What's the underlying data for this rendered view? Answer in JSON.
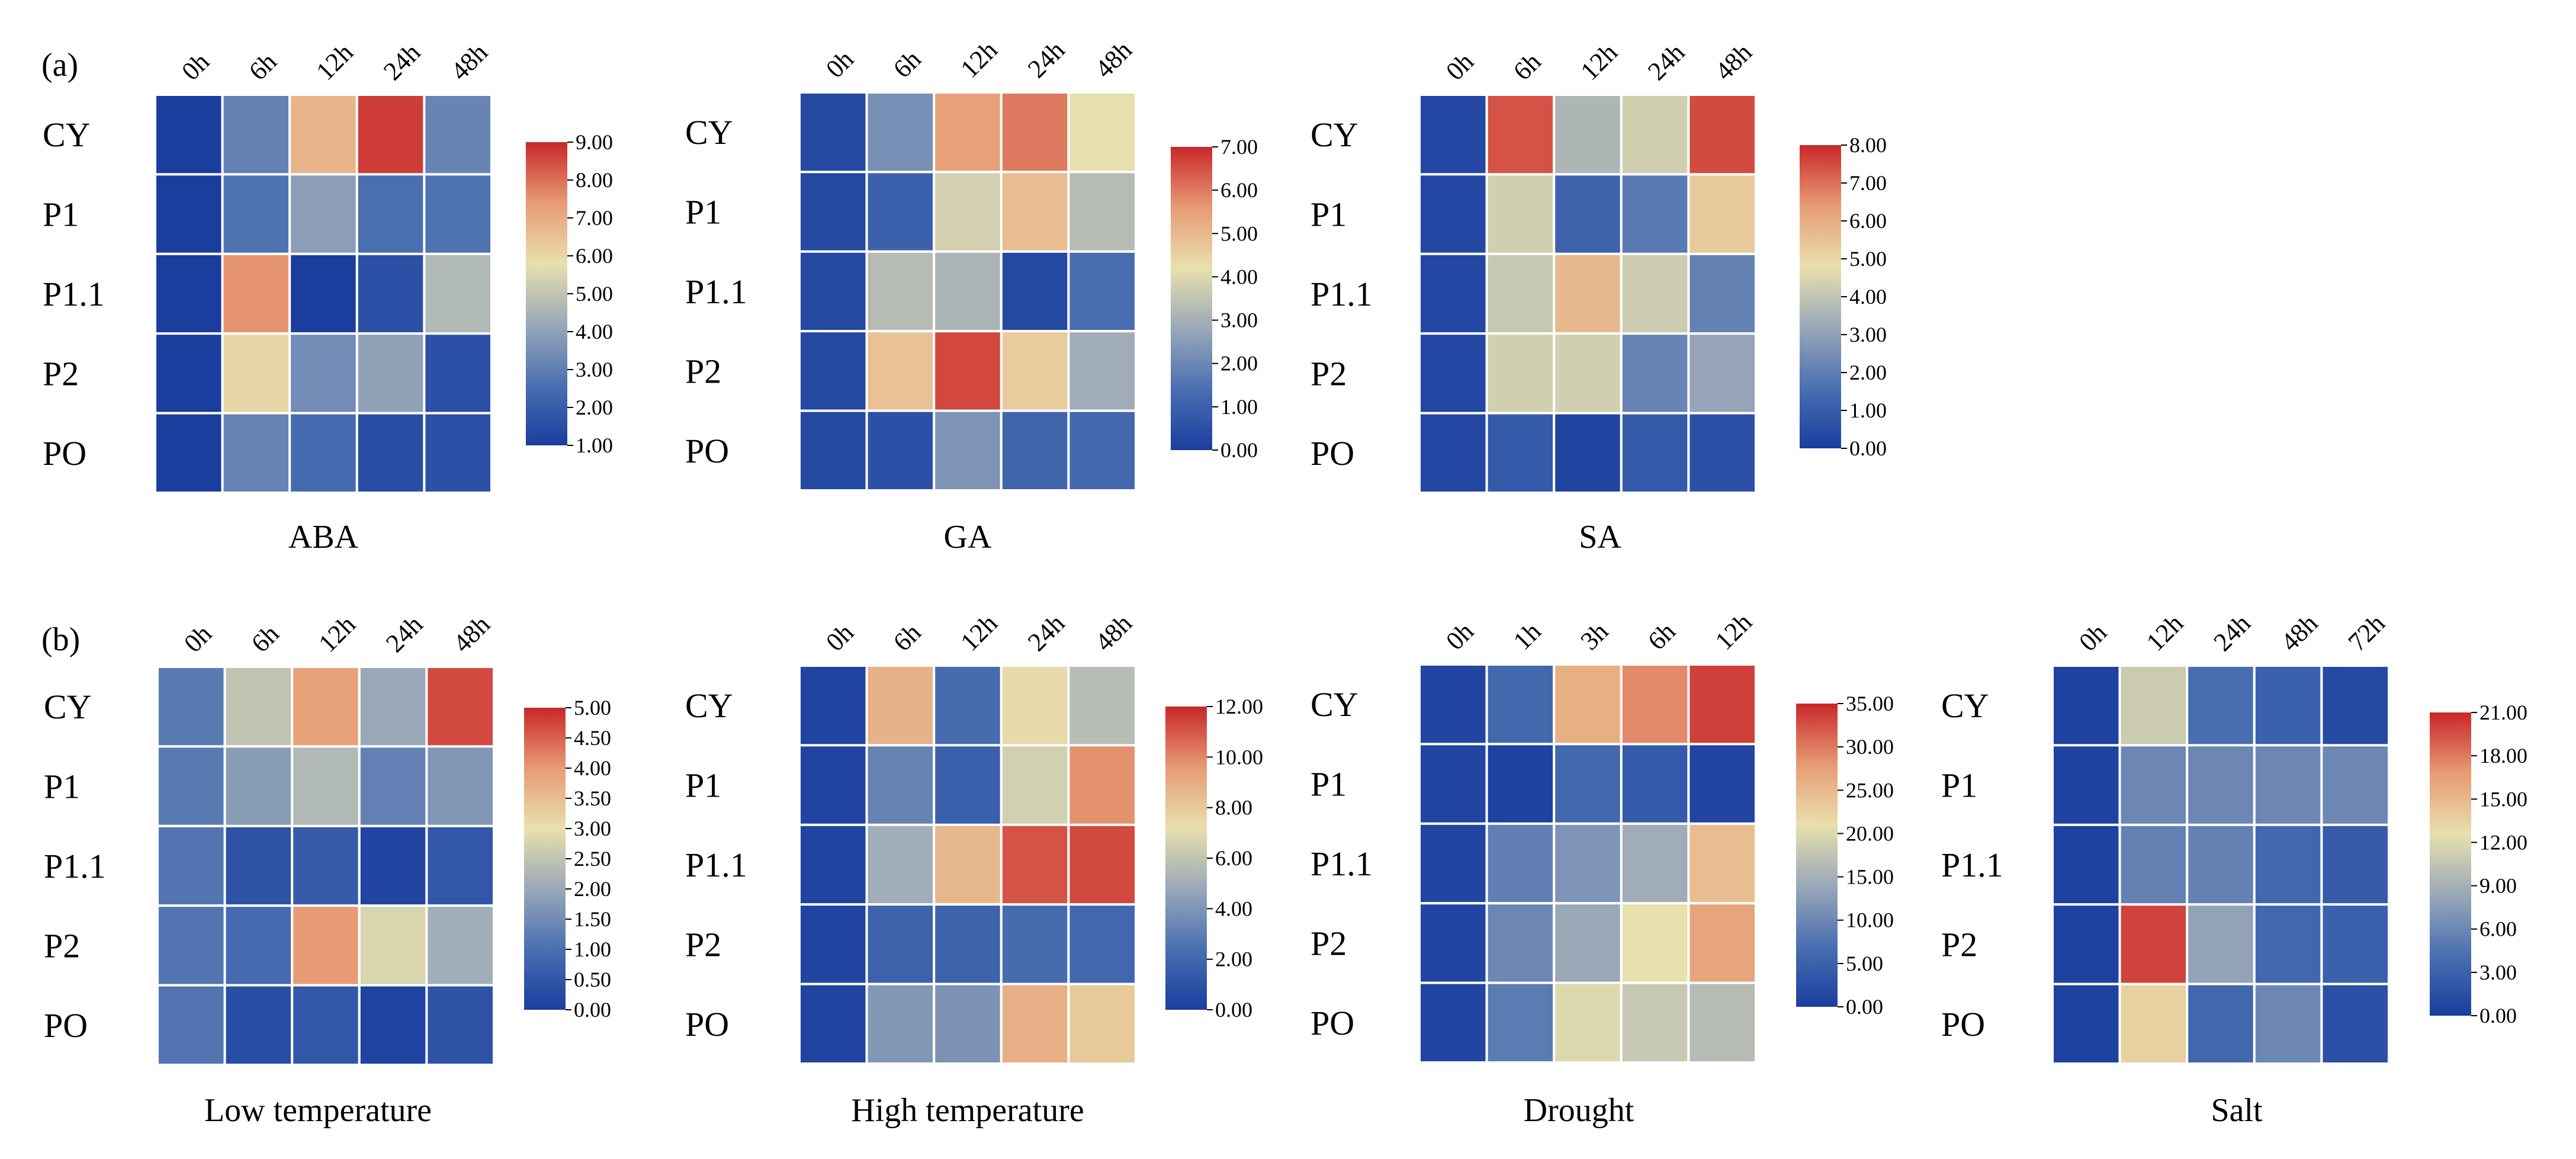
{
  "panel_labels": [
    "(a)",
    "(b)"
  ],
  "colors": {
    "scale_stops": [
      "#1a3e9e",
      "#4a6fb1",
      "#9aa8b8",
      "#e8e0ad",
      "#e79b74",
      "#c9272a"
    ],
    "grid_line": "#ffffff"
  },
  "chart_data": [
    {
      "type": "heatmap",
      "title": "ABA",
      "x": [
        "0h",
        "6h",
        "12h",
        "24h",
        "48h"
      ],
      "y": [
        "CY",
        "P1",
        "P1.1",
        "P2",
        "PO"
      ],
      "values": [
        [
          1.0,
          3.1,
          6.8,
          8.7,
          3.2
        ],
        [
          1.0,
          2.7,
          3.9,
          2.6,
          2.7
        ],
        [
          1.0,
          7.5,
          1.0,
          1.6,
          4.7
        ],
        [
          1.0,
          6.0,
          3.4,
          4.0,
          1.6
        ],
        [
          1.0,
          3.2,
          2.4,
          1.5,
          1.6
        ]
      ],
      "colorbar": {
        "min": 1.0,
        "max": 9.0,
        "ticks": [
          "1.00",
          "2.00",
          "3.00",
          "4.00",
          "5.00",
          "6.00",
          "7.00",
          "8.00",
          "9.00"
        ]
      }
    },
    {
      "type": "heatmap",
      "title": "GA",
      "x": [
        "0h",
        "6h",
        "12h",
        "24h",
        "48h"
      ],
      "y": [
        "CY",
        "P1",
        "P1.1",
        "P2",
        "PO"
      ],
      "values": [
        [
          0.3,
          2.2,
          5.5,
          6.0,
          4.2
        ],
        [
          0.3,
          1.0,
          3.8,
          4.9,
          3.3
        ],
        [
          0.3,
          3.3,
          3.1,
          0.3,
          1.3
        ],
        [
          0.3,
          4.8,
          6.6,
          4.6,
          2.9
        ],
        [
          0.3,
          0.5,
          2.3,
          1.1,
          1.2
        ]
      ],
      "colorbar": {
        "min": 0.0,
        "max": 7.0,
        "ticks": [
          "0.00",
          "1.00",
          "2.00",
          "3.00",
          "4.00",
          "5.00",
          "6.00",
          "7.00"
        ]
      }
    },
    {
      "type": "heatmap",
      "title": "SA",
      "x": [
        "0h",
        "6h",
        "12h",
        "24h",
        "48h"
      ],
      "y": [
        "CY",
        "P1",
        "P1.1",
        "P2",
        "PO"
      ],
      "values": [
        [
          0.3,
          7.4,
          3.6,
          4.3,
          7.5
        ],
        [
          0.3,
          4.3,
          1.2,
          1.9,
          5.3
        ],
        [
          0.3,
          4.1,
          5.7,
          4.2,
          2.1
        ],
        [
          0.3,
          4.3,
          4.3,
          2.2,
          3.1
        ],
        [
          0.3,
          0.9,
          0.2,
          0.9,
          0.6
        ]
      ],
      "colorbar": {
        "min": 0.0,
        "max": 8.0,
        "ticks": [
          "0.00",
          "1.00",
          "2.00",
          "3.00",
          "4.00",
          "5.00",
          "6.00",
          "7.00",
          "8.00"
        ]
      }
    },
    {
      "type": "heatmap",
      "title": "Low temperature",
      "x": [
        "0h",
        "6h",
        "12h",
        "24h",
        "48h"
      ],
      "y": [
        "CY",
        "P1",
        "P1.1",
        "P2",
        "PO"
      ],
      "values": [
        [
          1.2,
          2.5,
          3.9,
          2.0,
          4.7
        ],
        [
          1.2,
          1.8,
          2.3,
          1.3,
          1.7
        ],
        [
          1.1,
          0.4,
          0.6,
          0.15,
          0.5
        ],
        [
          1.1,
          0.9,
          4.0,
          2.8,
          2.1
        ],
        [
          1.1,
          0.3,
          0.5,
          0.1,
          0.4
        ]
      ],
      "colorbar": {
        "min": 0.0,
        "max": 5.0,
        "ticks": [
          "0.00",
          "0.50",
          "1.00",
          "1.50",
          "2.00",
          "2.50",
          "3.00",
          "3.50",
          "4.00",
          "4.50",
          "5.00"
        ]
      }
    },
    {
      "type": "heatmap",
      "title": "High temperature",
      "x": [
        "0h",
        "6h",
        "12h",
        "24h",
        "48h"
      ],
      "y": [
        "CY",
        "P1",
        "P1.1",
        "P2",
        "PO"
      ],
      "values": [
        [
          0.3,
          8.8,
          2.2,
          7.4,
          5.7
        ],
        [
          0.3,
          3.2,
          1.6,
          6.5,
          9.8
        ],
        [
          0.3,
          5.0,
          8.6,
          11.1,
          11.3
        ],
        [
          0.3,
          1.8,
          1.8,
          2.2,
          2.0
        ],
        [
          0.3,
          4.1,
          3.9,
          8.9,
          8.0
        ]
      ],
      "colorbar": {
        "min": 0.0,
        "max": 12.0,
        "ticks": [
          "0.00",
          "2.00",
          "4.00",
          "6.00",
          "8.00",
          "10.00",
          "12.00"
        ]
      }
    },
    {
      "type": "heatmap",
      "title": "Drought",
      "x": [
        "0h",
        "1h",
        "3h",
        "6h",
        "12h"
      ],
      "y": [
        "CY",
        "P1",
        "P1.1",
        "P2",
        "PO"
      ],
      "values": [
        [
          1.0,
          6.0,
          26.0,
          29.0,
          33.5
        ],
        [
          1.0,
          0.5,
          6.0,
          4.0,
          1.0
        ],
        [
          1.0,
          9.0,
          11.5,
          14.5,
          24.5
        ],
        [
          1.0,
          10.0,
          14.0,
          21.0,
          27.0
        ],
        [
          1.0,
          8.5,
          20.0,
          18.0,
          16.5
        ]
      ],
      "colorbar": {
        "min": 0.0,
        "max": 35.0,
        "ticks": [
          "0.00",
          "5.00",
          "10.00",
          "15.00",
          "20.00",
          "25.00",
          "30.00",
          "35.00"
        ]
      }
    },
    {
      "type": "heatmap",
      "title": "Salt",
      "x": [
        "0h",
        "12h",
        "24h",
        "48h",
        "72h"
      ],
      "y": [
        "CY",
        "P1",
        "P1.1",
        "P2",
        "PO"
      ],
      "values": [
        [
          0.3,
          11.0,
          4.0,
          3.0,
          1.0
        ],
        [
          0.3,
          6.0,
          6.0,
          6.0,
          6.0
        ],
        [
          0.3,
          5.5,
          5.5,
          3.5,
          2.5
        ],
        [
          0.3,
          20.0,
          8.0,
          3.5,
          3.0
        ],
        [
          0.3,
          13.5,
          3.5,
          6.0,
          1.5
        ]
      ],
      "colorbar": {
        "min": 0.0,
        "max": 21.0,
        "ticks": [
          "0.00",
          "3.00",
          "6.00",
          "9.00",
          "12.00",
          "15.00",
          "18.00",
          "21.00"
        ]
      }
    }
  ]
}
